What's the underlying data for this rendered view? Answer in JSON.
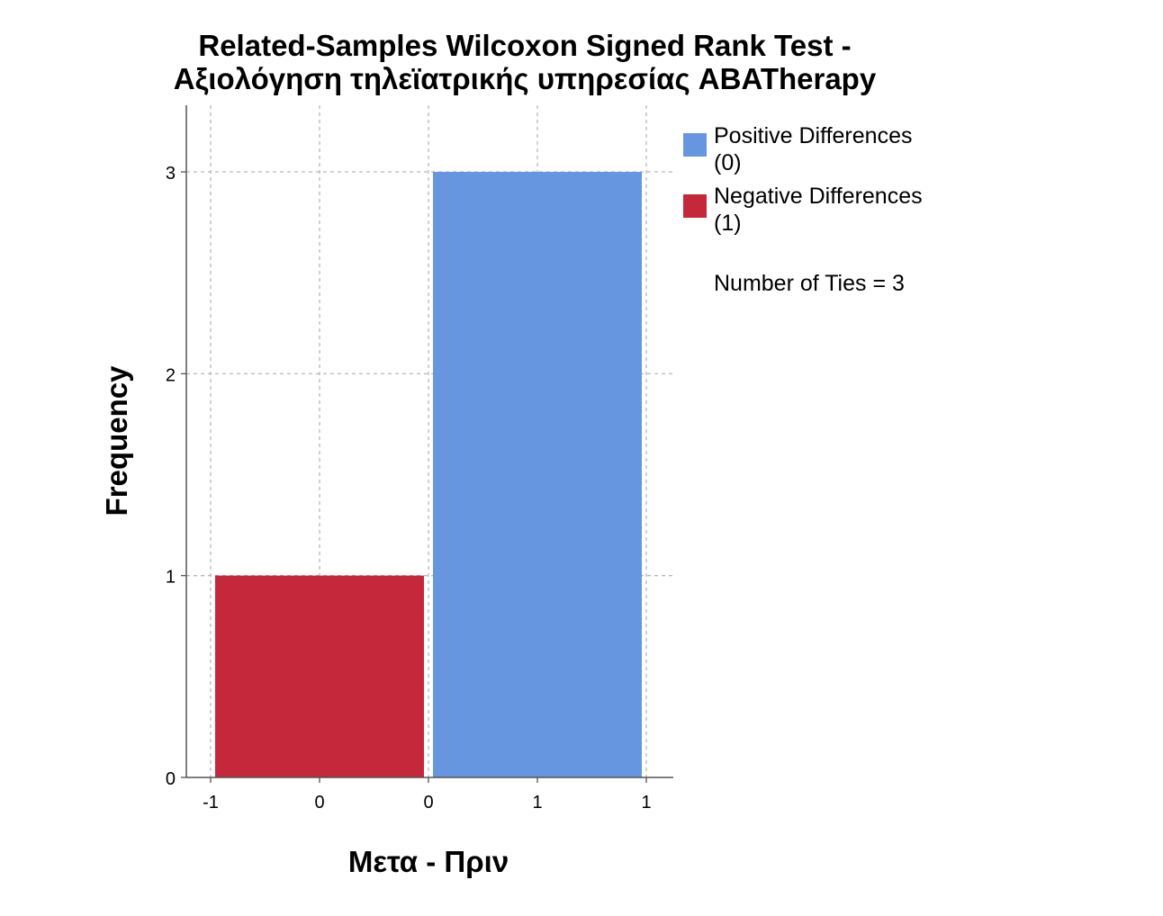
{
  "chart_data": {
    "type": "bar",
    "title_line1": "Related-Samples Wilcoxon Signed Rank Test -",
    "title_line2": "Αξιολόγηση τηλεϊατρικής υπηρεσίας ABATherapy",
    "xlabel": "Μετα - Πριν",
    "ylabel": "Frequency",
    "x_tick_labels": [
      "-1",
      "0",
      "0",
      "1",
      "1"
    ],
    "y_ticks": [
      0,
      1,
      2,
      3
    ],
    "ylim": [
      0,
      3.33
    ],
    "grid": true,
    "bars": [
      {
        "series": "Negative Differences",
        "x_start": -1,
        "x_end": 0,
        "value": 1,
        "color": "#c5283a"
      },
      {
        "series": "Positive Differences",
        "x_start": 0,
        "x_end": 1,
        "value": 3,
        "color": "#6696e0"
      }
    ],
    "legend": {
      "position": "right",
      "items": [
        {
          "line1": "Positive Differences",
          "line2": "(0)",
          "color": "#6696e0"
        },
        {
          "line1": "Negative Differences",
          "line2": "(1)",
          "color": "#c5283a"
        }
      ],
      "note": "Number of Ties = 3"
    }
  }
}
